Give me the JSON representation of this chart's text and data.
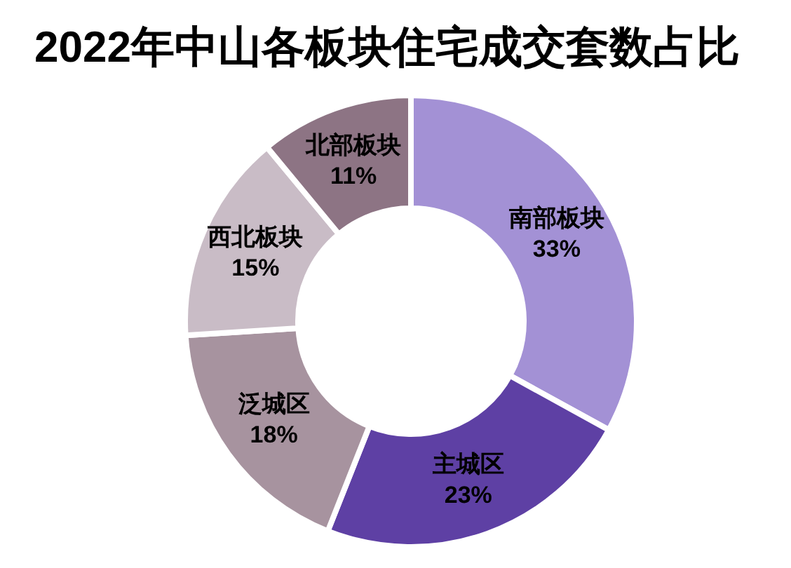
{
  "chart_data": {
    "type": "donut",
    "title": "2022年中山各板块住宅成交套数占比",
    "categories": [
      "南部板块",
      "主城区",
      "泛城区",
      "西北板块",
      "北部板块"
    ],
    "values": [
      33,
      23,
      18,
      15,
      11
    ],
    "colors": [
      "#a391d5",
      "#5e40a4",
      "#a7939f",
      "#c9bcc6",
      "#8d7484"
    ],
    "value_labels": [
      "33%",
      "23%",
      "18%",
      "15%",
      "11%"
    ]
  }
}
